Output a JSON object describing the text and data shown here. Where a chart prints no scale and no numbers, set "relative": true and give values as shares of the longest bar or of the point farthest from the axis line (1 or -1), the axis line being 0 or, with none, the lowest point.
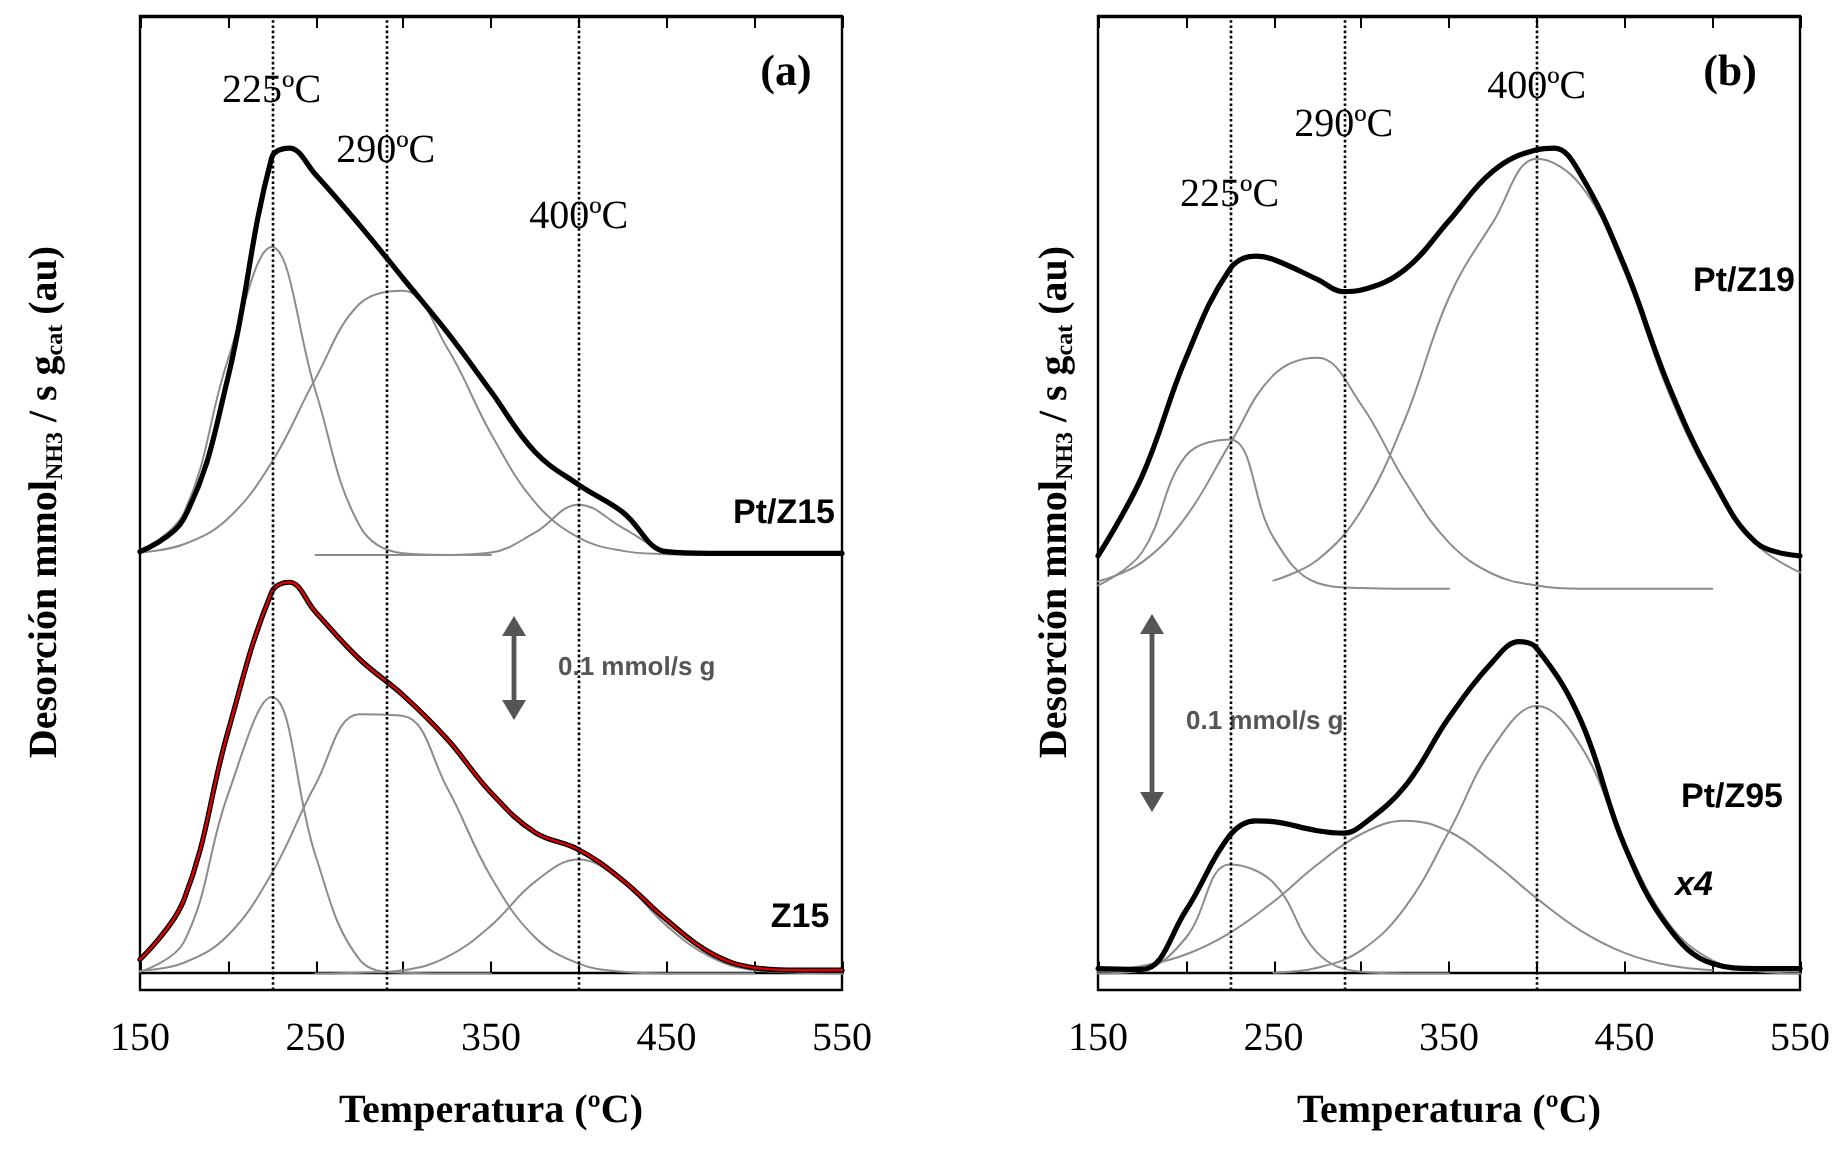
{
  "chart_data": [
    {
      "type": "line",
      "relative": true,
      "xlabel": "Temperatura (ºC)",
      "ylabel": "Desorción mmol$_{NH3}$ / s g$_{cat}$ (au)",
      "xlim": [
        150,
        550
      ],
      "xticks": [
        150,
        {
          "value": 200,
          "label": null
        },
        250,
        {
          "value": 300,
          "label": null
        },
        350,
        {
          "value": 400,
          "label": null
        },
        450,
        {
          "value": 500,
          "label": null
        },
        550
      ],
      "tick_labels": "x",
      "marker": "none",
      "line_style": "solid",
      "series": [
        {
          "name": "Pt/Z15",
          "color": "#000000",
          "x": [
            150,
            175,
            200,
            225,
            235,
            250,
            275,
            300,
            325,
            350,
            375,
            400,
            425,
            450,
            475,
            500,
            525,
            550
          ],
          "values": [
            0.511,
            0.551,
            0.721,
            0.988,
            1.0,
            0.968,
            0.907,
            0.842,
            0.777,
            0.705,
            0.632,
            0.592,
            0.559,
            0.511,
            0.509,
            0.509,
            0.509,
            0.509
          ]
        },
        {
          "color": "#8c8c8c",
          "x": [
            150,
            175,
            200,
            225,
            250,
            275,
            300,
            325,
            350
          ],
          "values": [
            0.511,
            0.558,
            0.743,
            0.88,
            0.706,
            0.543,
            0.509,
            0.507,
            0.507
          ]
        },
        {
          "color": "#8c8c8c",
          "x": [
            150,
            175,
            200,
            225,
            250,
            275,
            300,
            325,
            350,
            375,
            400,
            425,
            450,
            475,
            500
          ],
          "values": [
            0.51,
            0.52,
            0.551,
            0.619,
            0.721,
            0.811,
            0.827,
            0.758,
            0.654,
            0.571,
            0.528,
            0.512,
            0.508,
            0.507,
            0.507
          ]
        },
        {
          "color": "#8c8c8c",
          "x": [
            250,
            275,
            300,
            325,
            350,
            375,
            400,
            425,
            450,
            475,
            500,
            525,
            550
          ],
          "values": [
            0.507,
            0.507,
            0.507,
            0.507,
            0.51,
            0.534,
            0.568,
            0.54,
            0.512,
            0.507,
            0.507,
            0.507,
            0.507
          ]
        },
        {
          "name": "Z15",
          "color": "#000000",
          "x": [
            150,
            175,
            200,
            225,
            235,
            250,
            275,
            300,
            325,
            350,
            375,
            400,
            425,
            450,
            475,
            500,
            525,
            550
          ],
          "values": [
            0.017,
            0.089,
            0.292,
            0.462,
            0.474,
            0.438,
            0.381,
            0.337,
            0.284,
            0.219,
            0.171,
            0.15,
            0.113,
            0.065,
            0.025,
            0.007,
            0.004,
            0.004
          ]
        },
        {
          "color": "#e00000",
          "x": [
            150,
            175,
            200,
            225,
            235,
            250,
            275,
            300,
            325,
            350,
            375,
            400,
            425,
            450,
            475,
            500,
            525,
            550
          ],
          "values": [
            0.017,
            0.089,
            0.292,
            0.462,
            0.474,
            0.438,
            0.381,
            0.337,
            0.284,
            0.219,
            0.171,
            0.15,
            0.113,
            0.065,
            0.025,
            0.007,
            0.004,
            0.004
          ]
        },
        {
          "color": "#8c8c8c",
          "x": [
            150,
            175,
            200,
            225,
            250,
            275,
            300,
            325,
            350
          ],
          "values": [
            0.002,
            0.038,
            0.216,
            0.335,
            0.143,
            0.017,
            0.001,
            0,
            0
          ]
        },
        {
          "color": "#8c8c8c",
          "x": [
            150,
            175,
            200,
            225,
            250,
            275,
            300,
            325,
            350,
            375,
            400,
            425,
            450,
            475,
            500
          ],
          "values": [
            0.003,
            0.013,
            0.046,
            0.121,
            0.229,
            0.314,
            0.312,
            0.225,
            0.117,
            0.044,
            0.012,
            0.002,
            0,
            0,
            0
          ]
        },
        {
          "color": "#8c8c8c",
          "x": [
            250,
            275,
            300,
            325,
            350,
            375,
            400,
            425,
            450,
            475,
            500,
            525,
            550
          ],
          "values": [
            0,
            0.001,
            0.004,
            0.02,
            0.058,
            0.111,
            0.138,
            0.111,
            0.058,
            0.02,
            0.004,
            0.001,
            0
          ]
        }
      ],
      "ref_lines": [
        {
          "axis": "x",
          "value": 225,
          "label": "225ºC",
          "color": "#000000",
          "line_style": "dotted"
        },
        {
          "axis": "x",
          "value": 290,
          "label": "290ºC",
          "color": "#000000",
          "line_style": "dotted"
        },
        {
          "axis": "x",
          "value": 400,
          "label": "400ºC",
          "color": "#000000",
          "line_style": "dotted"
        }
      ],
      "annotations": [
        "(a)",
        "0.1 mmol/s g"
      ]
    },
    {
      "type": "line",
      "relative": true,
      "xlabel": "Temperatura (ºC)",
      "ylabel": "Desorción mmol$_{NH3}$ / s g$_{cat}$ (au)",
      "xlim": [
        150,
        550
      ],
      "xticks": [
        150,
        {
          "value": 200,
          "label": null
        },
        250,
        {
          "value": 300,
          "label": null
        },
        350,
        {
          "value": 400,
          "label": null
        },
        450,
        {
          "value": 500,
          "label": null
        },
        550
      ],
      "tick_labels": "x",
      "marker": "none",
      "line_style": "solid",
      "series": [
        {
          "name": "Pt/Z19",
          "color": "#000000",
          "x": [
            150,
            175,
            200,
            225,
            240,
            250,
            275,
            290,
            300,
            325,
            350,
            375,
            400,
            410,
            425,
            450,
            475,
            500,
            525,
            550
          ],
          "values": [
            0.506,
            0.602,
            0.745,
            0.853,
            0.869,
            0.865,
            0.841,
            0.826,
            0.828,
            0.853,
            0.912,
            0.972,
            0.998,
            1.0,
            0.968,
            0.857,
            0.713,
            0.6,
            0.522,
            0.506
          ]
        },
        {
          "color": "#8c8c8c",
          "x": [
            150,
            175,
            200,
            225,
            250,
            275,
            300,
            325,
            350
          ],
          "values": [
            0.47,
            0.51,
            0.627,
            0.647,
            0.528,
            0.473,
            0.467,
            0.466,
            0.466
          ]
        },
        {
          "color": "#8c8c8c",
          "x": [
            150,
            175,
            200,
            225,
            250,
            275,
            300,
            325,
            350,
            375,
            400,
            425,
            450,
            475,
            500
          ],
          "values": [
            0.475,
            0.498,
            0.553,
            0.641,
            0.725,
            0.746,
            0.689,
            0.596,
            0.522,
            0.484,
            0.47,
            0.466,
            0.466,
            0.466,
            0.466
          ]
        },
        {
          "color": "#8c8c8c",
          "x": [
            250,
            275,
            300,
            325,
            350,
            375,
            400,
            425,
            450,
            475,
            500,
            525,
            550
          ],
          "values": [
            0.476,
            0.501,
            0.561,
            0.672,
            0.819,
            0.91,
            0.987,
            0.955,
            0.85,
            0.705,
            0.595,
            0.52,
            0.486
          ]
        },
        {
          "name": "Pt/Z95",
          "color": "#000000",
          "x": [
            150,
            175,
            200,
            225,
            240,
            250,
            275,
            290,
            300,
            325,
            350,
            375,
            390,
            400,
            425,
            450,
            475,
            500,
            525,
            550
          ],
          "values": [
            0.006,
            0.005,
            0.076,
            0.167,
            0.185,
            0.184,
            0.173,
            0.17,
            0.179,
            0.227,
            0.31,
            0.378,
            0.402,
            0.394,
            0.307,
            0.155,
            0.056,
            0.012,
            0.006,
            0.006
          ]
        },
        {
          "color": "#8c8c8c",
          "x": [
            150,
            175,
            200,
            225,
            250,
            275,
            300,
            325,
            350
          ],
          "values": [
            0,
            0.004,
            0.043,
            0.132,
            0.11,
            0.025,
            0.002,
            0,
            0
          ]
        },
        {
          "color": "#8c8c8c",
          "x": [
            150,
            175,
            200,
            225,
            250,
            275,
            300,
            325,
            350,
            375,
            400,
            425,
            450,
            475,
            500
          ],
          "values": [
            0.003,
            0.009,
            0.023,
            0.049,
            0.087,
            0.132,
            0.169,
            0.185,
            0.172,
            0.135,
            0.091,
            0.052,
            0.025,
            0.01,
            0.004
          ]
        },
        {
          "color": "#8c8c8c",
          "x": [
            250,
            275,
            300,
            325,
            350,
            375,
            400,
            425,
            450,
            475,
            500,
            525,
            550
          ],
          "values": [
            0.001,
            0.007,
            0.028,
            0.08,
            0.172,
            0.274,
            0.324,
            0.276,
            0.158,
            0.061,
            0.016,
            0.003,
            0
          ]
        }
      ],
      "ref_lines": [
        {
          "axis": "x",
          "value": 225,
          "label": "225ºC",
          "color": "#000000",
          "line_style": "dotted"
        },
        {
          "axis": "x",
          "value": 290,
          "label": "290ºC",
          "color": "#000000",
          "line_style": "dotted"
        },
        {
          "axis": "x",
          "value": 400,
          "label": "400ºC",
          "color": "#000000",
          "line_style": "dotted"
        }
      ],
      "annotations": [
        "(b)",
        "0.1 mmol/s g",
        "x4"
      ]
    }
  ]
}
